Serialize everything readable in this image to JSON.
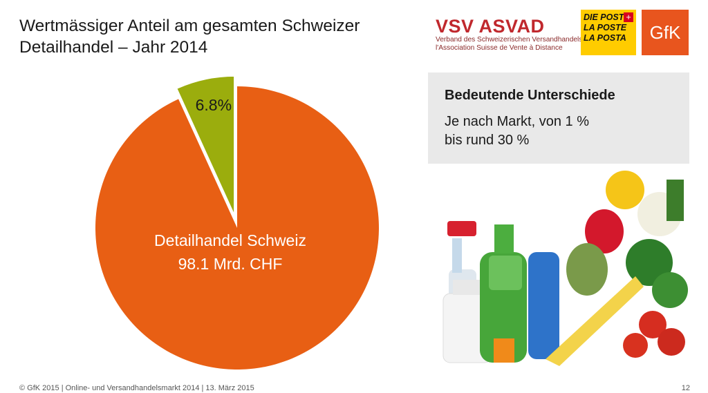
{
  "title": {
    "line1": "Wertmässiger Anteil am gesamten Schweizer",
    "line2": "Detailhandel – Jahr 2014"
  },
  "chart_data": {
    "type": "pie",
    "title": "",
    "slices": [
      {
        "label": "Detailhandel Schweiz",
        "sublabel": "98.1 Mrd. CHF",
        "value": 93.2,
        "color": "#e85f14"
      },
      {
        "label": "",
        "sublabel": "6.8%",
        "value": 6.8,
        "color": "#9bad0d",
        "exploded": true
      }
    ]
  },
  "logos": {
    "vsv_brand": "VSV ASVAD",
    "vsv_line1": "Verband des Schweizerischen Versandhandels",
    "vsv_line2": "l'Association Suisse de Vente à Distance",
    "post_line1": "DIE POST",
    "post_line2": "LA POSTE",
    "post_line3": "LA POSTA",
    "gfk": "GfK"
  },
  "infobox": {
    "heading": "Bedeutende Unterschiede",
    "line1": "Je nach Markt, von 1 %",
    "line2": "bis rund 30 %"
  },
  "footer": {
    "text": "© GfK 2015 | Online- und Versandhandelsmarkt 2014 | 13. März 2015",
    "page": "12"
  }
}
